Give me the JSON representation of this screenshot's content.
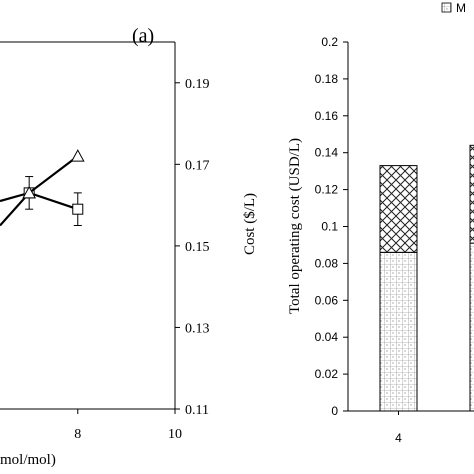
{
  "chart_data": [
    {
      "type": "line",
      "panel_label": "(a)",
      "xlabel_visible": "mol/mol)",
      "y2label": "Cost ($/L)",
      "x_ticks": [
        "8",
        "10"
      ],
      "x_range": [
        6.4,
        10
      ],
      "y2_ticks": [
        "0.11",
        "0.13",
        "0.15",
        "0.17",
        "0.19"
      ],
      "y2_range": [
        0.11,
        0.2
      ],
      "series": [
        {
          "marker": "square",
          "x": [
            6.4,
            7,
            8
          ],
          "y": [
            0.161,
            0.163,
            0.159
          ],
          "yerr": [
            null,
            0.004,
            0.004
          ]
        },
        {
          "marker": "triangle",
          "x": [
            6.4,
            7,
            8
          ],
          "y": [
            0.155,
            0.163,
            0.172
          ]
        }
      ]
    },
    {
      "type": "bar",
      "stacked": true,
      "ylabel": "Total operating cost (USD/L)",
      "y_ticks": [
        "0",
        "0.02",
        "0.04",
        "0.06",
        "0.08",
        "0.1",
        "0.12",
        "0.14",
        "0.16",
        "0.18",
        "0.2"
      ],
      "ylim": [
        0,
        0.2
      ],
      "categories": [
        "4",
        ""
      ],
      "legend_visible": "M",
      "series": [
        {
          "pattern": "dotted-grid",
          "values": [
            0.086,
            0.091
          ]
        },
        {
          "pattern": "crosshatch",
          "values": [
            0.047,
            0.053
          ]
        }
      ]
    }
  ]
}
